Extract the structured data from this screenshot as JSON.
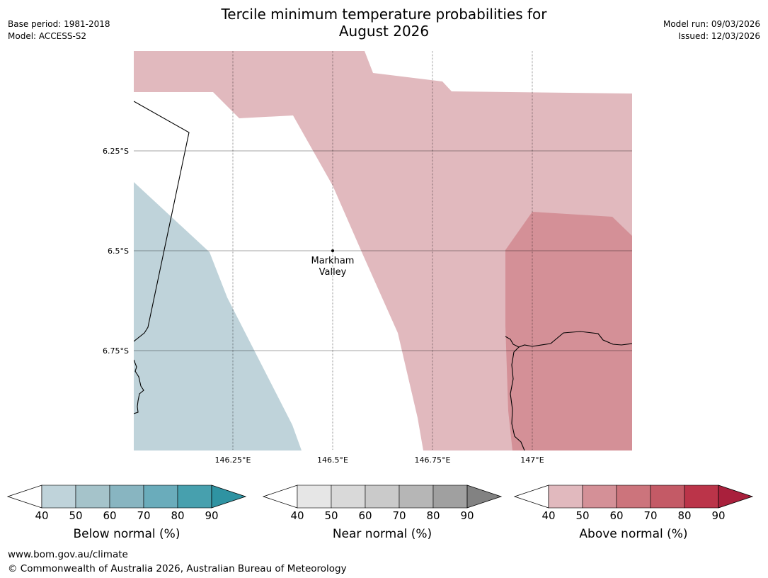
{
  "title_line1": "Tercile minimum temperature probabilities for",
  "title_line2": "August 2026",
  "meta": {
    "base_period": "Base period: 1981-2018",
    "model": "Model: ACCESS-S2",
    "model_run": "Model run: 09/03/2026",
    "issued": "Issued: 12/03/2026"
  },
  "map": {
    "lat_labels": [
      "6.25°S",
      "6.5°S",
      "6.75°S"
    ],
    "lon_labels": [
      "146.25°E",
      "146.5°E",
      "146.75°E",
      "147°E"
    ],
    "place_name_line1": "Markham",
    "place_name_line2": "Valley"
  },
  "colorbars": [
    {
      "label": "Below normal (%)",
      "ticks": [
        "40",
        "50",
        "60",
        "70",
        "80",
        "90"
      ],
      "colors": [
        "#bfd3da",
        "#a5c3ca",
        "#88b5c1",
        "#6aacbb",
        "#47a0ae",
        "#2f93a2"
      ]
    },
    {
      "label": "Near normal (%)",
      "ticks": [
        "40",
        "50",
        "60",
        "70",
        "80",
        "90"
      ],
      "colors": [
        "#e6e6e6",
        "#d9d9d9",
        "#cacaca",
        "#b6b6b6",
        "#a0a0a0",
        "#828282"
      ]
    },
    {
      "label": "Above normal (%)",
      "ticks": [
        "40",
        "50",
        "60",
        "70",
        "80",
        "90"
      ],
      "colors": [
        "#e1b9be",
        "#d49097",
        "#cc747c",
        "#c45a66",
        "#bb3449",
        "#a9203c"
      ]
    }
  ],
  "footer": {
    "website": "www.bom.gov.au/climate",
    "copyright": "© Commonwealth of Australia 2026, Australian Bureau of Meteorology"
  }
}
